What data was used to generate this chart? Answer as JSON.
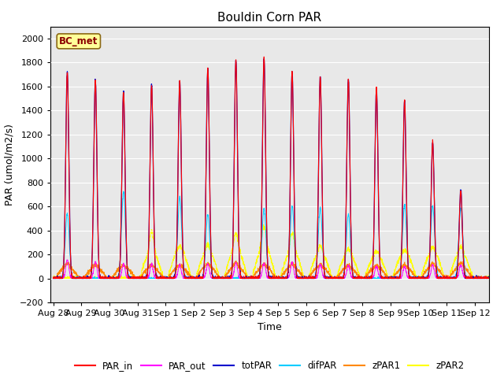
{
  "title": "Bouldin Corn PAR",
  "ylabel": "PAR (umol/m2/s)",
  "xlabel": "Time",
  "ylim": [
    -200,
    2100
  ],
  "yticks": [
    -200,
    0,
    200,
    400,
    600,
    800,
    1000,
    1200,
    1400,
    1600,
    1800,
    2000
  ],
  "background_color": "#e8e8e8",
  "legend_label": "BC_met",
  "series_colors": {
    "PAR_in": "#ff0000",
    "PAR_out": "#ff00ff",
    "totPAR": "#0000cc",
    "difPAR": "#00ccff",
    "zPAR1": "#ff8800",
    "zPAR2": "#ffff00"
  },
  "x_tick_labels": [
    "Aug 28",
    "Aug 29",
    "Aug 30",
    "Aug 31",
    "Sep 1",
    "Sep 2",
    "Sep 3",
    "Sep 4",
    "Sep 5",
    "Sep 6",
    "Sep 7",
    "Sep 8",
    "Sep 9",
    "Sep 10",
    "Sep 11",
    "Sep 12"
  ],
  "title_fontsize": 11,
  "label_fontsize": 9,
  "tick_fontsize": 8,
  "par_in_peaks": [
    1720,
    1650,
    1560,
    1610,
    1640,
    1750,
    1820,
    1840,
    1720,
    1680,
    1660,
    1580,
    1480,
    1140,
    730,
    0
  ],
  "tot_par_peaks": [
    1720,
    1650,
    1560,
    1610,
    1640,
    1750,
    1820,
    1840,
    1720,
    1680,
    1660,
    1580,
    1480,
    1140,
    740,
    0
  ],
  "dif_par_peaks": [
    540,
    0,
    720,
    0,
    680,
    530,
    0,
    580,
    600,
    590,
    530,
    0,
    610,
    600,
    590,
    0
  ],
  "par_out_peaks": [
    155,
    140,
    120,
    120,
    110,
    120,
    130,
    130,
    130,
    120,
    110,
    100,
    100,
    110,
    110,
    0
  ],
  "zpar1_base": [
    100,
    90,
    95,
    95,
    95,
    105,
    105,
    100,
    100,
    100,
    95,
    90,
    95,
    100,
    100,
    0
  ],
  "zpar1_peak": [
    130,
    120,
    110,
    110,
    110,
    125,
    130,
    120,
    120,
    115,
    110,
    110,
    115,
    130,
    130,
    0
  ],
  "zpar2_base": [
    0,
    0,
    0,
    220,
    240,
    230,
    250,
    270,
    235,
    215,
    205,
    195,
    220,
    220,
    220,
    0
  ],
  "zpar2_peak": [
    0,
    0,
    0,
    400,
    270,
    280,
    375,
    430,
    380,
    270,
    250,
    230,
    235,
    260,
    260,
    0
  ]
}
